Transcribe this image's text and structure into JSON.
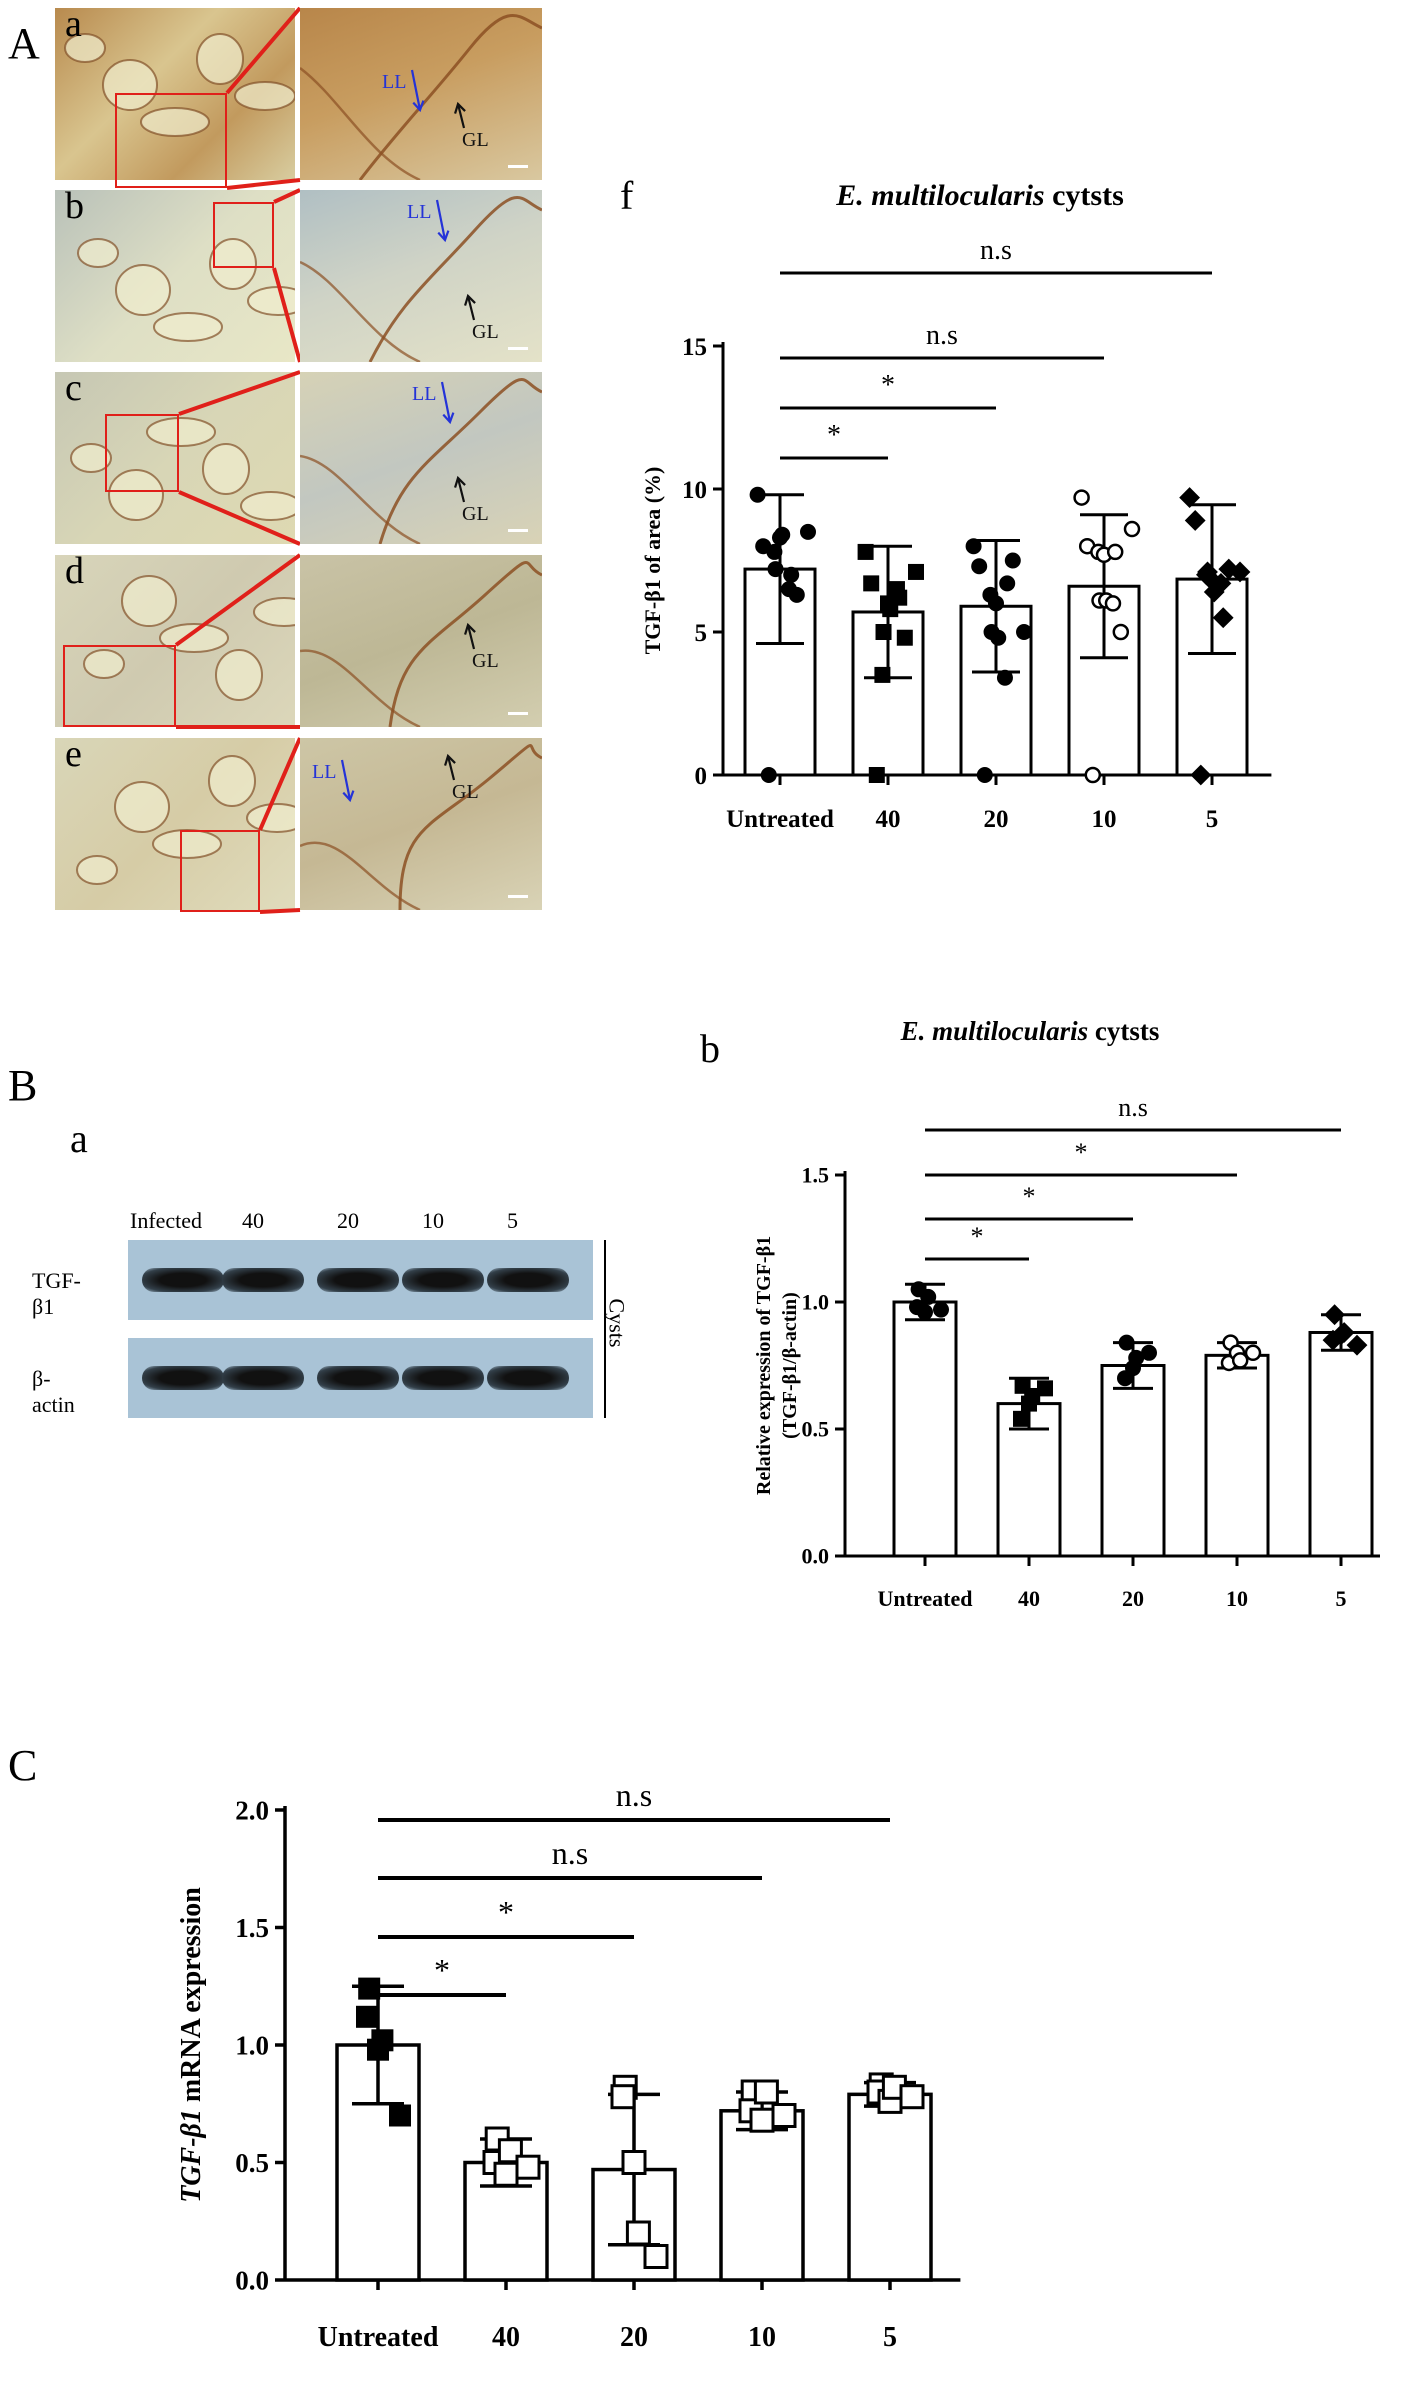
{
  "panels": {
    "A": {
      "letter": "A",
      "sublabels": [
        "a",
        "b",
        "c",
        "d",
        "e"
      ],
      "f_label": "f",
      "annot": {
        "LL": "LL",
        "GL": "GL"
      }
    },
    "B": {
      "letter": "B",
      "sub_a": "a",
      "sub_b": "b",
      "blot": {
        "lanes": [
          "Infected",
          "40",
          "20",
          "10",
          "5"
        ],
        "rows": [
          "TGF-β1",
          "β-actin"
        ],
        "side_label": "Cysts"
      }
    },
    "C": {
      "letter": "C"
    }
  },
  "chart_data": [
    {
      "id": "Af",
      "type": "bar",
      "title_italic": "E. multilocularis",
      "title_rest": " cytsts",
      "ylabel": "TGF-β1 of area (%)",
      "xlabel": "",
      "categories": [
        "Untreated",
        "40",
        "20",
        "10",
        "5"
      ],
      "values": [
        7.2,
        5.7,
        5.9,
        6.6,
        6.85
      ],
      "errors": [
        2.6,
        2.3,
        2.3,
        2.5,
        2.6
      ],
      "ylim": [
        0,
        15
      ],
      "yticks": [
        0,
        5,
        10,
        15
      ],
      "marker": [
        "circle-filled",
        "square-filled",
        "circle-filled",
        "circle-open",
        "diamond-filled"
      ],
      "points": [
        [
          0,
          9.8,
          8.0,
          7.2,
          7.8,
          8.3,
          8.4,
          7.0,
          6.3,
          6.5,
          8.5
        ],
        [
          0,
          7.8,
          6.7,
          5.0,
          3.5,
          6.0,
          5.8,
          6.2,
          4.8,
          6.5,
          7.1
        ],
        [
          0,
          8.0,
          7.3,
          5.0,
          6.3,
          6.0,
          4.8,
          6.7,
          7.5,
          3.4,
          5.0
        ],
        [
          0,
          9.7,
          8.0,
          6.1,
          7.8,
          7.7,
          6.1,
          7.8,
          5.0,
          6.0,
          8.6
        ],
        [
          0,
          9.7,
          8.9,
          7.1,
          7.0,
          6.8,
          6.4,
          5.5,
          7.2,
          6.7,
          7.1
        ]
      ],
      "significance": [
        {
          "to": 1,
          "label": "*"
        },
        {
          "to": 2,
          "label": "*"
        },
        {
          "to": 3,
          "label": "n.s"
        },
        {
          "to": 4,
          "label": "n.s"
        }
      ]
    },
    {
      "id": "Bb",
      "type": "bar",
      "title_italic": "E. multilocularis",
      "title_rest": " cytsts",
      "ylabel_line1": "Relative expression of TGF-β1",
      "ylabel_line2": "(TGF-β1/β-actin)",
      "xlabel": "",
      "categories": [
        "Untreated",
        "40",
        "20",
        "10",
        "5"
      ],
      "values": [
        1.0,
        0.6,
        0.75,
        0.79,
        0.88
      ],
      "errors": [
        0.07,
        0.1,
        0.09,
        0.05,
        0.07
      ],
      "ylim": [
        0,
        1.5
      ],
      "yticks": [
        0.0,
        0.5,
        1.0,
        1.5
      ],
      "marker": [
        "circle-filled",
        "square-filled",
        "circle-filled",
        "circle-open",
        "diamond-filled"
      ],
      "points": [
        [
          1.05,
          0.98,
          0.96,
          1.02,
          0.97
        ],
        [
          0.67,
          0.54,
          0.6,
          0.63,
          0.66
        ],
        [
          0.84,
          0.7,
          0.74,
          0.78,
          0.8
        ],
        [
          0.84,
          0.76,
          0.8,
          0.77,
          0.8
        ],
        [
          0.95,
          0.85,
          0.87,
          0.88,
          0.83
        ]
      ],
      "significance": [
        {
          "to": 1,
          "label": "*"
        },
        {
          "to": 2,
          "label": "*"
        },
        {
          "to": 3,
          "label": "*"
        },
        {
          "to": 4,
          "label": "n.s"
        }
      ]
    },
    {
      "id": "C",
      "type": "bar",
      "ylabel_italic": "TGF-β1",
      "ylabel_rest": " mRNA expression",
      "xlabel": "",
      "categories": [
        "Untreated",
        "40",
        "20",
        "10",
        "5"
      ],
      "values": [
        1.0,
        0.5,
        0.47,
        0.72,
        0.79
      ],
      "errors": [
        0.25,
        0.1,
        0.32,
        0.08,
        0.05
      ],
      "ylim": [
        0,
        2.0
      ],
      "yticks": [
        0.0,
        0.5,
        1.0,
        1.5,
        2.0
      ],
      "yticklabels": [
        "0.0",
        "0.5",
        "1.0",
        "1.5",
        "2.0"
      ],
      "marker": [
        "square-filled",
        "square-open",
        "square-open",
        "square-open",
        "square-open"
      ],
      "points": [
        [
          1.24,
          1.12,
          0.98,
          1.02,
          0.7
        ],
        [
          0.6,
          0.5,
          0.45,
          0.55,
          0.48
        ],
        [
          0.82,
          0.78,
          0.5,
          0.2,
          0.1
        ],
        [
          0.8,
          0.72,
          0.68,
          0.8,
          0.7
        ],
        [
          0.83,
          0.8,
          0.76,
          0.82,
          0.78
        ]
      ],
      "significance": [
        {
          "to": 1,
          "label": "*"
        },
        {
          "to": 2,
          "label": "*"
        },
        {
          "to": 3,
          "label": "n.s"
        },
        {
          "to": 4,
          "label": "n.s"
        }
      ]
    }
  ]
}
